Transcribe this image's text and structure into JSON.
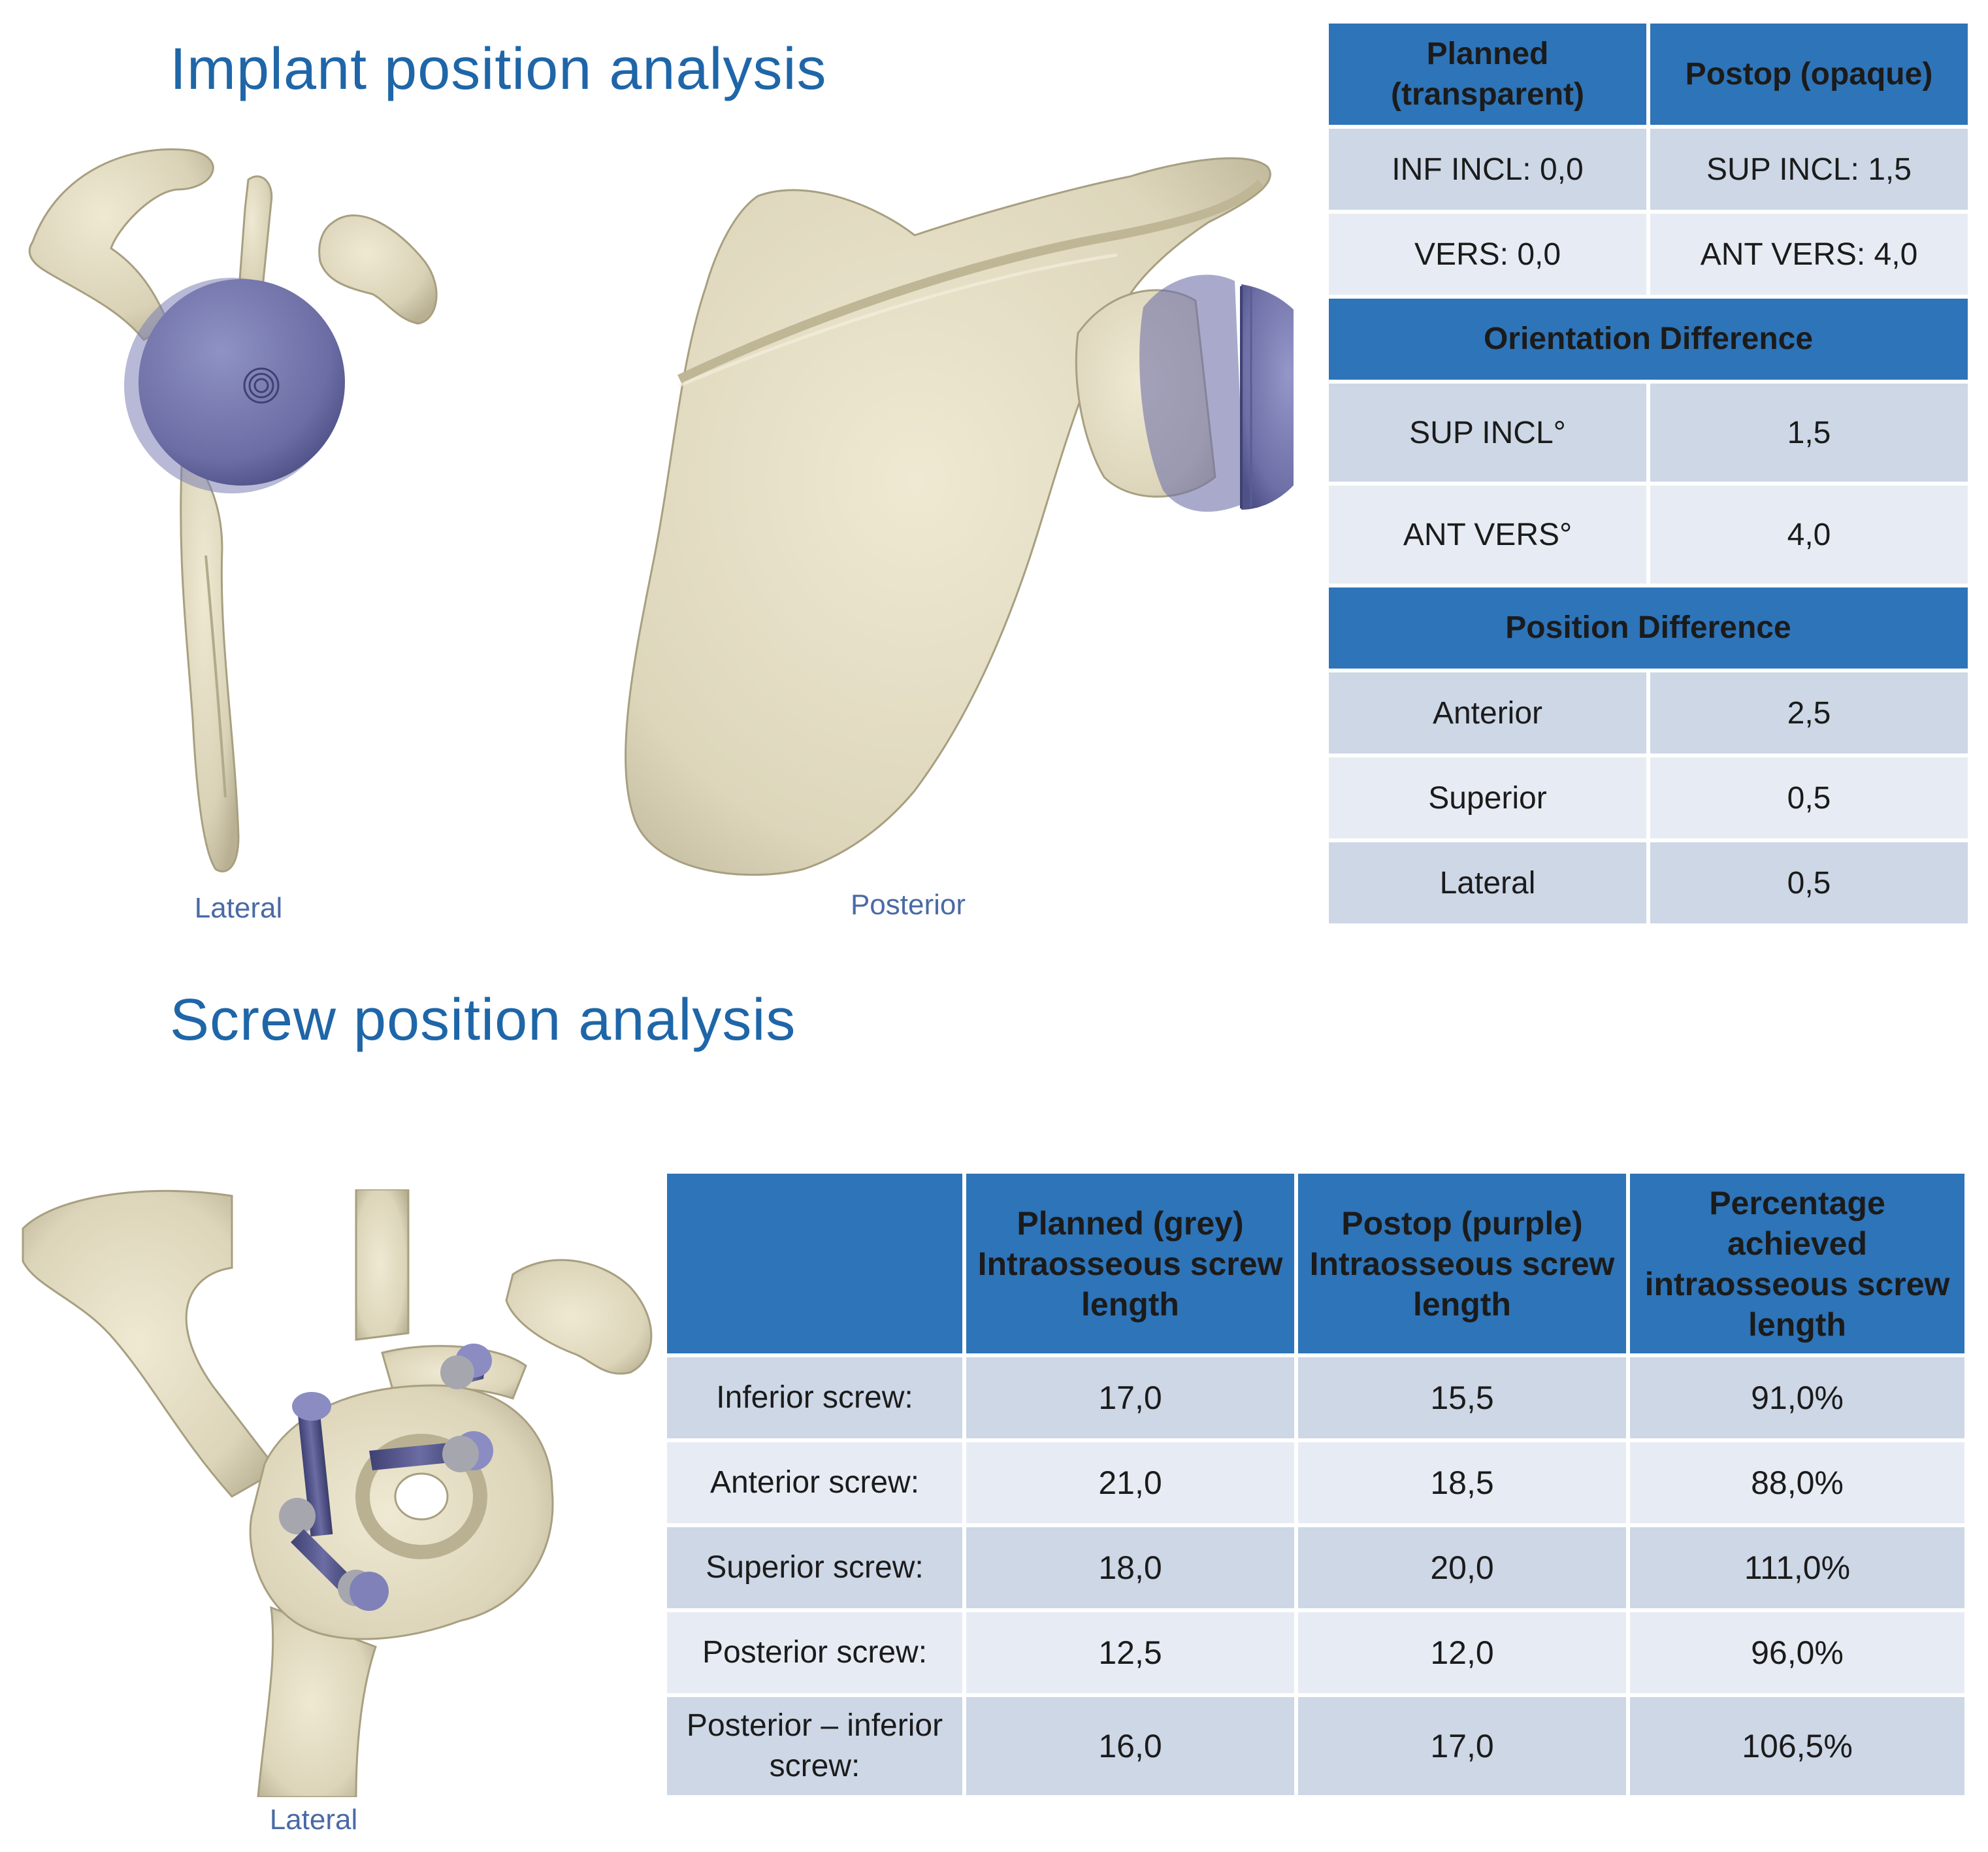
{
  "implant_section": {
    "title": "Implant position analysis",
    "captions": {
      "lateral": "Lateral",
      "posterior": "Posterior"
    },
    "table": {
      "header": {
        "planned": "Planned (transparent)",
        "postop": "Postop (opaque)"
      },
      "rows": [
        {
          "planned": "INF INCL: 0,0",
          "postop": "SUP INCL: 1,5"
        },
        {
          "planned": "VERS: 0,0",
          "postop": "ANT VERS: 4,0"
        }
      ],
      "orientation": {
        "heading": "Orientation Difference",
        "rows": [
          {
            "label": "SUP INCL°",
            "value": "1,5"
          },
          {
            "label": "ANT VERS°",
            "value": "4,0"
          }
        ]
      },
      "position": {
        "heading": "Position Difference",
        "rows": [
          {
            "label": "Anterior",
            "value": "2,5"
          },
          {
            "label": "Superior",
            "value": "0,5"
          },
          {
            "label": "Lateral",
            "value": "0,5"
          }
        ]
      }
    }
  },
  "screw_section": {
    "title": "Screw position analysis",
    "caption": "Lateral",
    "table": {
      "columns": [
        "",
        "Planned (grey) Intraosseous screw length",
        "Postop (purple) Intraosseous screw length",
        "Percentage achieved intraosseous screw length"
      ],
      "rows": [
        {
          "label": "Inferior screw:",
          "planned": "17,0",
          "postop": "15,5",
          "percent": "91,0%"
        },
        {
          "label": "Anterior screw:",
          "planned": "21,0",
          "postop": "18,5",
          "percent": "88,0%"
        },
        {
          "label": "Superior screw:",
          "planned": "18,0",
          "postop": "20,0",
          "percent": "111,0%"
        },
        {
          "label": "Posterior screw:",
          "planned": "12,5",
          "postop": "12,0",
          "percent": "96,0%"
        },
        {
          "label": "Posterior – inferior screw:",
          "planned": "16,0",
          "postop": "17,0",
          "percent": "106,5%"
        }
      ]
    }
  },
  "colors": {
    "title": "#1f66a8",
    "header_bg": "#2e74b8",
    "row_dark": "#cdd7e6",
    "row_light": "#e7ecf4",
    "bone": "#ddd6bd",
    "implant": "#6f71a8",
    "screw_planned": "#a6a6ae"
  }
}
